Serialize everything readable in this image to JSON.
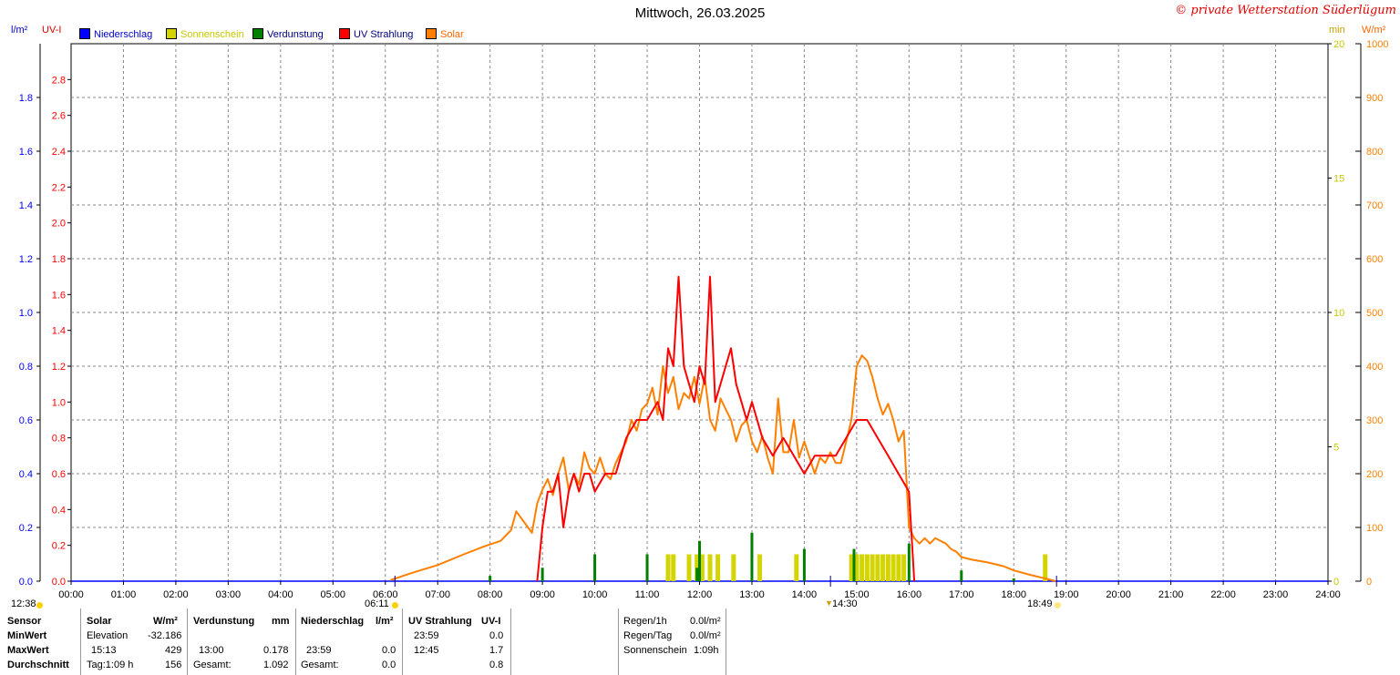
{
  "header": {
    "title": "Mittwoch, 26.03.2025",
    "copyright": "© private Wetterstation Süderlügum",
    "left_unit_rain": "l/m²",
    "left_unit_uv": "UV-I",
    "right_unit_min": "min",
    "right_unit_solar": "W/m²"
  },
  "legend": [
    {
      "label": "Niederschlag",
      "color": "#0000ff",
      "text_color": "#0000cc"
    },
    {
      "label": "Sonnenschein",
      "color": "#d4d400",
      "text_color": "#c8c800"
    },
    {
      "label": "Verdunstung",
      "color": "#008000",
      "text_color": "#000080"
    },
    {
      "label": "UV Strahlung",
      "color": "#ff0000",
      "text_color": "#000080"
    },
    {
      "label": "Solar",
      "color": "#ff8000",
      "text_color": "#ff6600"
    }
  ],
  "chart_data": {
    "type": "line",
    "x_ticks": [
      "00:00",
      "01:00",
      "02:00",
      "03:00",
      "04:00",
      "05:00",
      "06:00",
      "07:00",
      "08:00",
      "09:00",
      "10:00",
      "11:00",
      "12:00",
      "13:00",
      "14:00",
      "15:00",
      "16:00",
      "17:00",
      "18:00",
      "19:00",
      "20:00",
      "21:00",
      "22:00",
      "23:00",
      "24:00"
    ],
    "x_range_hours": [
      0,
      24
    ],
    "axes": {
      "rain": {
        "unit": "l/m²",
        "range": [
          0,
          2
        ],
        "ticks": [
          "0.0",
          "0.2",
          "0.4",
          "0.6",
          "0.8",
          "1.0",
          "1.2",
          "1.4",
          "1.6",
          "1.8"
        ],
        "color": "#0000ff"
      },
      "uv": {
        "unit": "UV-I",
        "range": [
          0,
          3
        ],
        "ticks": [
          "0.0",
          "0.2",
          "0.4",
          "0.6",
          "0.8",
          "1.0",
          "1.2",
          "1.4",
          "1.6",
          "1.8",
          "2.0",
          "2.2",
          "2.4",
          "2.6",
          "2.8"
        ],
        "color": "#ff0000"
      },
      "sunshine": {
        "unit": "min",
        "range": [
          0,
          20
        ],
        "ticks": [
          "0",
          "5",
          "10",
          "15",
          "20"
        ],
        "color": "#c8c800"
      },
      "solar": {
        "unit": "W/m²",
        "range": [
          0,
          1000
        ],
        "ticks": [
          "0",
          "100",
          "200",
          "300",
          "400",
          "500",
          "600",
          "700",
          "800",
          "900",
          "1000"
        ],
        "color": "#ff8000"
      }
    },
    "grid": true,
    "series": [
      {
        "name": "Solar",
        "axis": "solar",
        "color": "#ff8000",
        "x": [
          6.1,
          6.5,
          7.0,
          7.5,
          7.9,
          8.2,
          8.4,
          8.5,
          8.65,
          8.8,
          8.9,
          9.0,
          9.1,
          9.2,
          9.3,
          9.4,
          9.5,
          9.6,
          9.7,
          9.8,
          9.9,
          10.0,
          10.1,
          10.2,
          10.3,
          10.4,
          10.5,
          10.6,
          10.7,
          10.8,
          10.9,
          11.0,
          11.1,
          11.2,
          11.3,
          11.4,
          11.5,
          11.6,
          11.7,
          11.8,
          11.9,
          12.0,
          12.1,
          12.2,
          12.3,
          12.4,
          12.5,
          12.6,
          12.7,
          12.8,
          12.9,
          13.0,
          13.1,
          13.2,
          13.3,
          13.4,
          13.5,
          13.6,
          13.7,
          13.8,
          13.9,
          14.0,
          14.1,
          14.2,
          14.3,
          14.4,
          14.5,
          14.6,
          14.7,
          14.8,
          14.9,
          15.0,
          15.1,
          15.2,
          15.3,
          15.4,
          15.5,
          15.6,
          15.7,
          15.8,
          15.9,
          16.0,
          16.1,
          16.2,
          16.3,
          16.4,
          16.5,
          16.6,
          16.7,
          16.8,
          16.9,
          17.0,
          17.2,
          17.5,
          17.8,
          18.0,
          18.3,
          18.6,
          18.8
        ],
        "y": [
          2,
          15,
          30,
          50,
          65,
          75,
          95,
          130,
          110,
          90,
          145,
          170,
          190,
          160,
          200,
          230,
          170,
          200,
          180,
          240,
          210,
          200,
          230,
          200,
          190,
          220,
          240,
          260,
          300,
          280,
          320,
          330,
          360,
          310,
          400,
          350,
          380,
          320,
          350,
          340,
          380,
          330,
          380,
          300,
          280,
          340,
          320,
          300,
          260,
          290,
          300,
          260,
          240,
          270,
          230,
          200,
          340,
          240,
          240,
          300,
          230,
          260,
          230,
          200,
          230,
          220,
          240,
          220,
          220,
          260,
          300,
          400,
          420,
          410,
          380,
          340,
          310,
          330,
          300,
          260,
          280,
          100,
          80,
          70,
          80,
          70,
          80,
          75,
          70,
          60,
          55,
          45,
          40,
          35,
          28,
          20,
          12,
          5,
          0
        ]
      },
      {
        "name": "UV Strahlung",
        "axis": "uv",
        "color": "#ff0000",
        "x": [
          8.9,
          9.0,
          9.1,
          9.2,
          9.3,
          9.4,
          9.5,
          9.6,
          9.7,
          9.8,
          9.9,
          10.0,
          10.2,
          10.4,
          10.6,
          10.8,
          11.0,
          11.2,
          11.3,
          11.4,
          11.5,
          11.6,
          11.7,
          11.8,
          11.9,
          12.0,
          12.1,
          12.2,
          12.3,
          12.4,
          12.5,
          12.6,
          12.7,
          12.8,
          12.9,
          13.0,
          13.2,
          13.4,
          13.6,
          13.8,
          14.0,
          14.2,
          14.4,
          14.6,
          14.8,
          15.0,
          15.1,
          15.2,
          15.4,
          15.6,
          15.8,
          16.0,
          16.1
        ],
        "y": [
          0,
          0.3,
          0.5,
          0.5,
          0.6,
          0.3,
          0.5,
          0.6,
          0.5,
          0.6,
          0.6,
          0.5,
          0.6,
          0.6,
          0.8,
          0.9,
          0.9,
          1.0,
          0.9,
          1.3,
          1.2,
          1.7,
          1.2,
          1.1,
          1.0,
          1.2,
          1.1,
          1.7,
          1.0,
          1.1,
          1.2,
          1.3,
          1.1,
          1.0,
          0.9,
          1.0,
          0.8,
          0.7,
          0.8,
          0.7,
          0.6,
          0.7,
          0.7,
          0.7,
          0.8,
          0.9,
          0.9,
          0.9,
          0.8,
          0.7,
          0.6,
          0.5,
          0.0
        ]
      }
    ],
    "sunshine_bars": {
      "axis": "sunshine",
      "color": "#d4d400",
      "x": [
        11.4,
        11.5,
        11.8,
        11.95,
        12.05,
        12.2,
        12.35,
        12.65,
        13.15,
        13.85,
        14.9,
        15.0,
        15.1,
        15.2,
        15.3,
        15.4,
        15.5,
        15.6,
        15.7,
        15.8,
        15.9,
        18.6
      ],
      "y": [
        1,
        1,
        1,
        1,
        1,
        1,
        1,
        1,
        1,
        1,
        1,
        1,
        1,
        1,
        1,
        1,
        1,
        1,
        1,
        1,
        1,
        1
      ]
    },
    "evaporation_bars": {
      "axis": "rain",
      "color": "#008000",
      "x": [
        8.0,
        9.0,
        10.0,
        11.0,
        11.95,
        12.0,
        13.0,
        14.0,
        14.95,
        16.0,
        17.0,
        18.0
      ],
      "y": [
        0.02,
        0.05,
        0.1,
        0.1,
        0.05,
        0.15,
        0.18,
        0.12,
        0.12,
        0.14,
        0.04,
        0.01
      ]
    },
    "markers": {
      "sunrise": "06:11",
      "sunset": "18:49",
      "noon": "12:38",
      "event": "14:30"
    }
  },
  "table": {
    "col1": {
      "head": "Sensor",
      "r1": "MinWert",
      "r2": "MaxWert",
      "r3": "Durchschnitt"
    },
    "solar": {
      "head": "Solar",
      "unit": "W/m²",
      "r1a": "Elevation",
      "r1b": "-32.186",
      "r2a": "15:13",
      "r2b": "429",
      "r3a": "Tag:1:09 h",
      "r3b": "156"
    },
    "verd": {
      "head": "Verdunstung",
      "unit": "mm",
      "r2a": "13:00",
      "r2b": "0.178",
      "r3a": "Gesamt:",
      "r3b": "1.092"
    },
    "nied": {
      "head": "Niederschlag",
      "unit": "l/m²",
      "r2a": "23:59",
      "r2b": "0.0",
      "r3a": "Gesamt:",
      "r3b": "0.0"
    },
    "uv": {
      "head": "UV Strahlung",
      "unit": "UV-I",
      "r1a": "23:59",
      "r1b": "0.0",
      "r2a": "12:45",
      "r2b": "1.7",
      "r3b": "0.8"
    },
    "rain": {
      "r1a": "Regen/1h",
      "r1b": "0.0l/m²",
      "r2a": "Regen/Tag",
      "r2b": "0.0l/m²",
      "r3a": "Sonnenschein",
      "r3b": "1:09h"
    }
  }
}
